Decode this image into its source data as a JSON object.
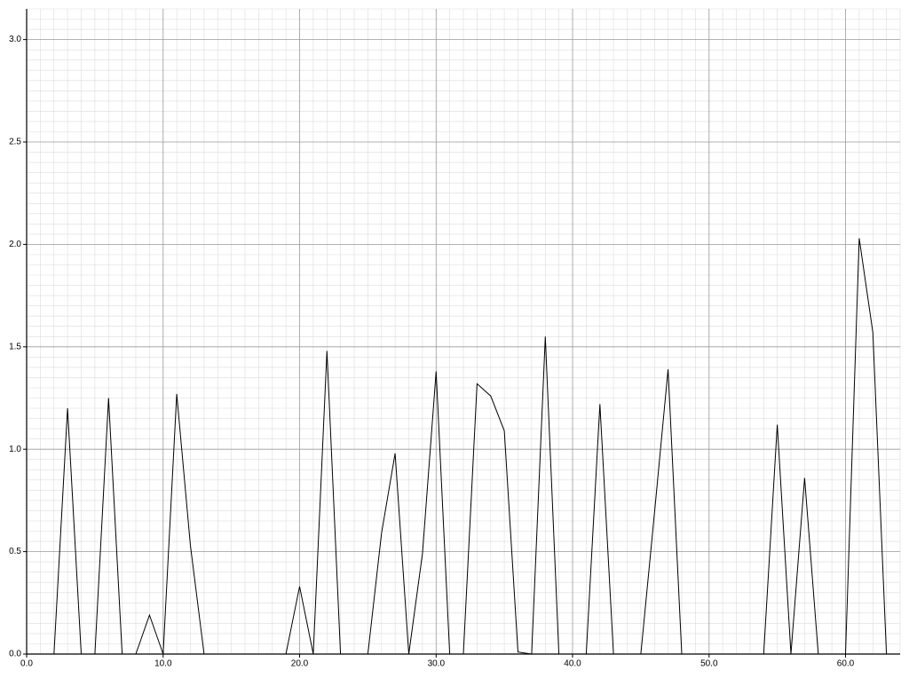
{
  "chart_data": {
    "type": "line",
    "title": "",
    "xlabel": "",
    "ylabel": "",
    "xlim": [
      0,
      64
    ],
    "ylim": [
      0,
      3.15
    ],
    "x_ticks": [
      "0.0",
      "10.0",
      "20.0",
      "30.0",
      "40.0",
      "50.0",
      "60.0"
    ],
    "y_ticks": [
      "0.0",
      "0.5",
      "1.0",
      "1.5",
      "2.0",
      "2.5",
      "3.0"
    ],
    "grid": true,
    "colors": {
      "line": "#000000",
      "major_grid": "#9a9a9a",
      "minor_grid": "#dcdcdc",
      "axis": "#000000"
    },
    "series": [
      {
        "x": [
          0,
          1,
          2,
          3,
          4,
          5,
          6,
          7,
          8,
          9,
          10,
          11,
          12,
          13,
          14,
          15,
          16,
          17,
          18,
          19,
          20,
          21,
          22,
          23,
          24,
          25,
          26,
          27,
          28,
          29,
          30,
          31,
          32,
          33,
          34,
          35,
          36,
          37,
          38,
          39,
          40,
          41,
          42,
          43,
          44,
          45,
          46,
          47,
          48,
          49,
          50,
          51,
          52,
          53,
          54,
          55,
          56,
          57,
          58,
          59,
          60,
          61,
          62,
          63
        ],
        "values": [
          0,
          0,
          0,
          1.2,
          0,
          0,
          1.25,
          0,
          0,
          0.19,
          0,
          1.27,
          0.53,
          0,
          0,
          0,
          0,
          0,
          0,
          0,
          0.33,
          0,
          1.48,
          0,
          0,
          0,
          0.59,
          0.98,
          0,
          0.49,
          1.38,
          0,
          0,
          1.32,
          1.26,
          1.09,
          0.01,
          0,
          1.55,
          0,
          0,
          0,
          1.22,
          0,
          0,
          0,
          0.69,
          1.39,
          0,
          0,
          0,
          0,
          0,
          0,
          0,
          1.12,
          0,
          0.86,
          0,
          0,
          0,
          2.03,
          1.57,
          0
        ]
      }
    ]
  }
}
